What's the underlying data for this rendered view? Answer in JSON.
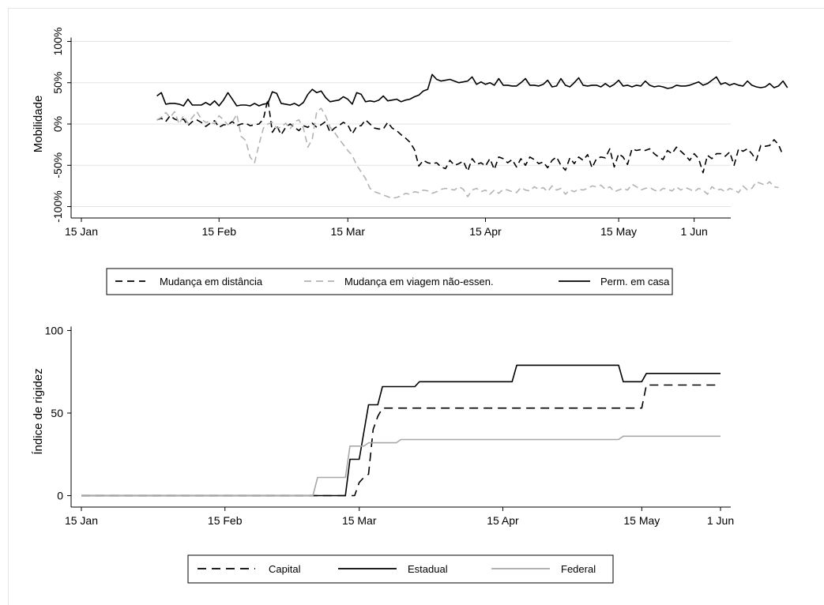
{
  "chart_data": [
    {
      "type": "line",
      "ylabel": "Mobilidade",
      "ylim": [
        -110,
        110
      ],
      "yticks": [
        -100,
        -50,
        0,
        50,
        100
      ],
      "ytick_labels": [
        "-100%",
        "-50%",
        "0%",
        "50%",
        "100%"
      ],
      "xlim": [
        "2020-01-15",
        "2020-06-08"
      ],
      "xticks": [
        "2020-01-15",
        "2020-02-15",
        "2020-03-15",
        "2020-04-15",
        "2020-05-15",
        "2020-06-01"
      ],
      "xtick_labels": [
        "15 Jan",
        "15 Feb",
        "15 Mar",
        "15 Apr",
        "15 May",
        "1 Jun"
      ],
      "grid": true,
      "legend": "bottom",
      "series": [
        {
          "name": "Mudança em distância",
          "style": "dashed",
          "color": "#000000",
          "start": "2020-02-01",
          "values": [
            5,
            7,
            3,
            10,
            6,
            4,
            6,
            -2,
            3,
            5,
            2,
            -3,
            1,
            4,
            -4,
            -1,
            -1,
            3,
            -2,
            0,
            1,
            -2,
            -1,
            0,
            6,
            30,
            -10,
            -2,
            -13,
            -4,
            0,
            -4,
            -8,
            -2,
            -4,
            1,
            -4,
            -1,
            3,
            -10,
            -5,
            -2,
            2,
            -1,
            -12,
            -3,
            -2,
            5,
            0,
            -5,
            -6,
            -6,
            2,
            -5,
            -8,
            -13,
            -17,
            -22,
            -31,
            -51,
            -44,
            -47,
            -48,
            -47,
            -52,
            -54,
            -44,
            -50,
            -48,
            -45,
            -57,
            -42,
            -49,
            -47,
            -51,
            -42,
            -55,
            -40,
            -42,
            -47,
            -43,
            -52,
            -42,
            -50,
            -40,
            -43,
            -48,
            -46,
            -53,
            -44,
            -40,
            -50,
            -56,
            -41,
            -48,
            -40,
            -44,
            -37,
            -53,
            -42,
            -40,
            -41,
            -30,
            -52,
            -36,
            -40,
            -49,
            -30,
            -32,
            -31,
            -32,
            -30,
            -36,
            -40,
            -43,
            -32,
            -36,
            -28,
            -33,
            -38,
            -44,
            -36,
            -42,
            -59,
            -38,
            -42,
            -36,
            -36,
            -39,
            -34,
            -50,
            -30,
            -33,
            -30,
            -36,
            -44,
            -26,
            -27,
            -26,
            -19,
            -25,
            -38
          ]
        },
        {
          "name": "Mudança em viagem não-essen.",
          "style": "dashed",
          "color": "#b3b3b3",
          "start": "2020-02-01",
          "values": [
            5,
            8,
            14,
            8,
            15,
            0,
            10,
            1,
            8,
            15,
            6,
            2,
            3,
            0,
            10,
            5,
            -1,
            2,
            12,
            -15,
            -20,
            -40,
            -47,
            -25,
            -5,
            0,
            2,
            -5,
            -4,
            1,
            -6,
            3,
            5,
            -5,
            -28,
            -18,
            15,
            19,
            10,
            -4,
            -10,
            -18,
            -25,
            -32,
            -38,
            -50,
            -58,
            -66,
            -78,
            -82,
            -84,
            -86,
            -88,
            -90,
            -89,
            -87,
            -84,
            -85,
            -82,
            -83,
            -80,
            -81,
            -84,
            -82,
            -79,
            -78,
            -79,
            -80,
            -76,
            -79,
            -88,
            -80,
            -78,
            -82,
            -80,
            -85,
            -80,
            -84,
            -79,
            -80,
            -82,
            -83,
            -77,
            -80,
            -81,
            -76,
            -79,
            -77,
            -82,
            -75,
            -80,
            -78,
            -85,
            -80,
            -82,
            -79,
            -80,
            -78,
            -75,
            -76,
            -74,
            -79,
            -76,
            -82,
            -80,
            -78,
            -80,
            -73,
            -76,
            -80,
            -78,
            -77,
            -80,
            -82,
            -78,
            -79,
            -81,
            -76,
            -80,
            -77,
            -79,
            -82,
            -78,
            -80,
            -85,
            -76,
            -80,
            -79,
            -82,
            -78,
            -80,
            -83,
            -75,
            -80,
            -78,
            -70,
            -72,
            -74,
            -70,
            -76,
            -77
          ]
        },
        {
          "name": "Perm. em casa",
          "style": "solid",
          "color": "#000000",
          "start": "2020-02-01",
          "values": [
            34,
            38,
            24,
            25,
            25,
            24,
            22,
            30,
            23,
            23,
            23,
            26,
            23,
            28,
            22,
            29,
            38,
            30,
            22,
            23,
            23,
            22,
            25,
            22,
            24,
            25,
            39,
            37,
            25,
            24,
            23,
            25,
            22,
            26,
            36,
            42,
            38,
            40,
            32,
            27,
            28,
            29,
            33,
            30,
            24,
            38,
            36,
            27,
            28,
            27,
            29,
            34,
            28,
            29,
            30,
            27,
            29,
            30,
            33,
            35,
            40,
            42,
            60,
            54,
            52,
            53,
            54,
            52,
            50,
            51,
            52,
            57,
            48,
            51,
            48,
            50,
            47,
            55,
            47,
            47,
            46,
            46,
            50,
            55,
            47,
            47,
            46,
            48,
            53,
            45,
            46,
            55,
            47,
            45,
            50,
            56,
            47,
            46,
            47,
            47,
            45,
            49,
            45,
            48,
            53,
            46,
            47,
            45,
            47,
            46,
            52,
            47,
            45,
            46,
            45,
            43,
            44,
            47,
            46,
            46,
            47,
            49,
            51,
            47,
            49,
            53,
            57,
            48,
            50,
            47,
            49,
            47,
            46,
            52,
            47,
            45,
            44,
            45,
            49,
            44,
            46,
            52,
            44
          ]
        }
      ]
    },
    {
      "type": "line",
      "ylabel": "Índice de rigidez",
      "ylim": [
        -5,
        105
      ],
      "yticks": [
        0,
        50,
        100
      ],
      "ytick_labels": [
        "0",
        "50",
        "100"
      ],
      "xlim": [
        "2020-01-15",
        "2020-06-01"
      ],
      "xticks": [
        "2020-01-15",
        "2020-02-15",
        "2020-03-15",
        "2020-04-15",
        "2020-05-15",
        "2020-06-01"
      ],
      "xtick_labels": [
        "15 Jan",
        "15 Feb",
        "15 Mar",
        "15 Apr",
        "15 May",
        "1 Jun"
      ],
      "grid": false,
      "legend": "bottom",
      "series": [
        {
          "name": "Capital",
          "style": "dashed",
          "color": "#000000",
          "steps": [
            [
              "2020-01-15",
              0
            ],
            [
              "2020-03-14",
              0
            ],
            [
              "2020-03-15",
              8
            ],
            [
              "2020-03-16",
              11
            ],
            [
              "2020-03-17",
              13
            ],
            [
              "2020-03-18",
              40
            ],
            [
              "2020-03-19",
              48
            ],
            [
              "2020-03-20",
              53
            ],
            [
              "2020-05-15",
              53
            ],
            [
              "2020-05-16",
              67
            ],
            [
              "2020-06-01",
              67
            ]
          ]
        },
        {
          "name": "Estadual",
          "style": "solid",
          "color": "#000000",
          "steps": [
            [
              "2020-01-15",
              0
            ],
            [
              "2020-03-12",
              0
            ],
            [
              "2020-03-13",
              22
            ],
            [
              "2020-03-15",
              22
            ],
            [
              "2020-03-17",
              55
            ],
            [
              "2020-03-19",
              55
            ],
            [
              "2020-03-20",
              66
            ],
            [
              "2020-03-27",
              66
            ],
            [
              "2020-03-28",
              69
            ],
            [
              "2020-04-17",
              69
            ],
            [
              "2020-04-18",
              79
            ],
            [
              "2020-05-10",
              79
            ],
            [
              "2020-05-11",
              69
            ],
            [
              "2020-05-15",
              69
            ],
            [
              "2020-05-16",
              74
            ],
            [
              "2020-06-01",
              74
            ]
          ]
        },
        {
          "name": "Federal",
          "style": "solid",
          "color": "#a8a8a8",
          "steps": [
            [
              "2020-01-15",
              0
            ],
            [
              "2020-03-05",
              0
            ],
            [
              "2020-03-06",
              11
            ],
            [
              "2020-03-12",
              11
            ],
            [
              "2020-03-13",
              30
            ],
            [
              "2020-03-16",
              30
            ],
            [
              "2020-03-17",
              32
            ],
            [
              "2020-03-23",
              32
            ],
            [
              "2020-03-24",
              34
            ],
            [
              "2020-05-10",
              34
            ],
            [
              "2020-05-11",
              36
            ],
            [
              "2020-06-01",
              36
            ]
          ]
        }
      ]
    }
  ]
}
